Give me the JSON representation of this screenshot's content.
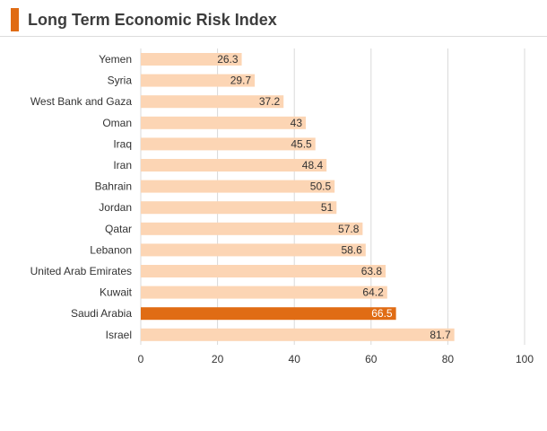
{
  "header": {
    "title": "Long Term Economic Risk Index"
  },
  "colors": {
    "accent": "#e06c14",
    "bar": "#fcd5b4",
    "highlight": "#e06c14",
    "grid": "#d9d9d9",
    "label": "#333333"
  },
  "chart_data": {
    "type": "bar",
    "orientation": "horizontal",
    "title": "Long Term Economic Risk Index",
    "xlabel": "",
    "ylabel": "",
    "xlim": [
      0,
      100
    ],
    "ticks": [
      0,
      20,
      40,
      60,
      80,
      100
    ],
    "grid": true,
    "categories": [
      "Yemen",
      "Syria",
      "West Bank and Gaza",
      "Oman",
      "Iraq",
      "Iran",
      "Bahrain",
      "Jordan",
      "Qatar",
      "Lebanon",
      "United Arab Emirates",
      "Kuwait",
      "Saudi Arabia",
      "Israel"
    ],
    "values": [
      26.3,
      29.7,
      37.2,
      43,
      45.5,
      48.4,
      50.5,
      51,
      57.8,
      58.6,
      63.8,
      64.2,
      66.5,
      81.7
    ],
    "value_labels": [
      "26.3",
      "29.7",
      "37.2",
      "43",
      "45.5",
      "48.4",
      "50.5",
      "51",
      "57.8",
      "58.6",
      "63.8",
      "64.2",
      "66.5",
      "81.7"
    ],
    "highlight": "Saudi Arabia"
  }
}
